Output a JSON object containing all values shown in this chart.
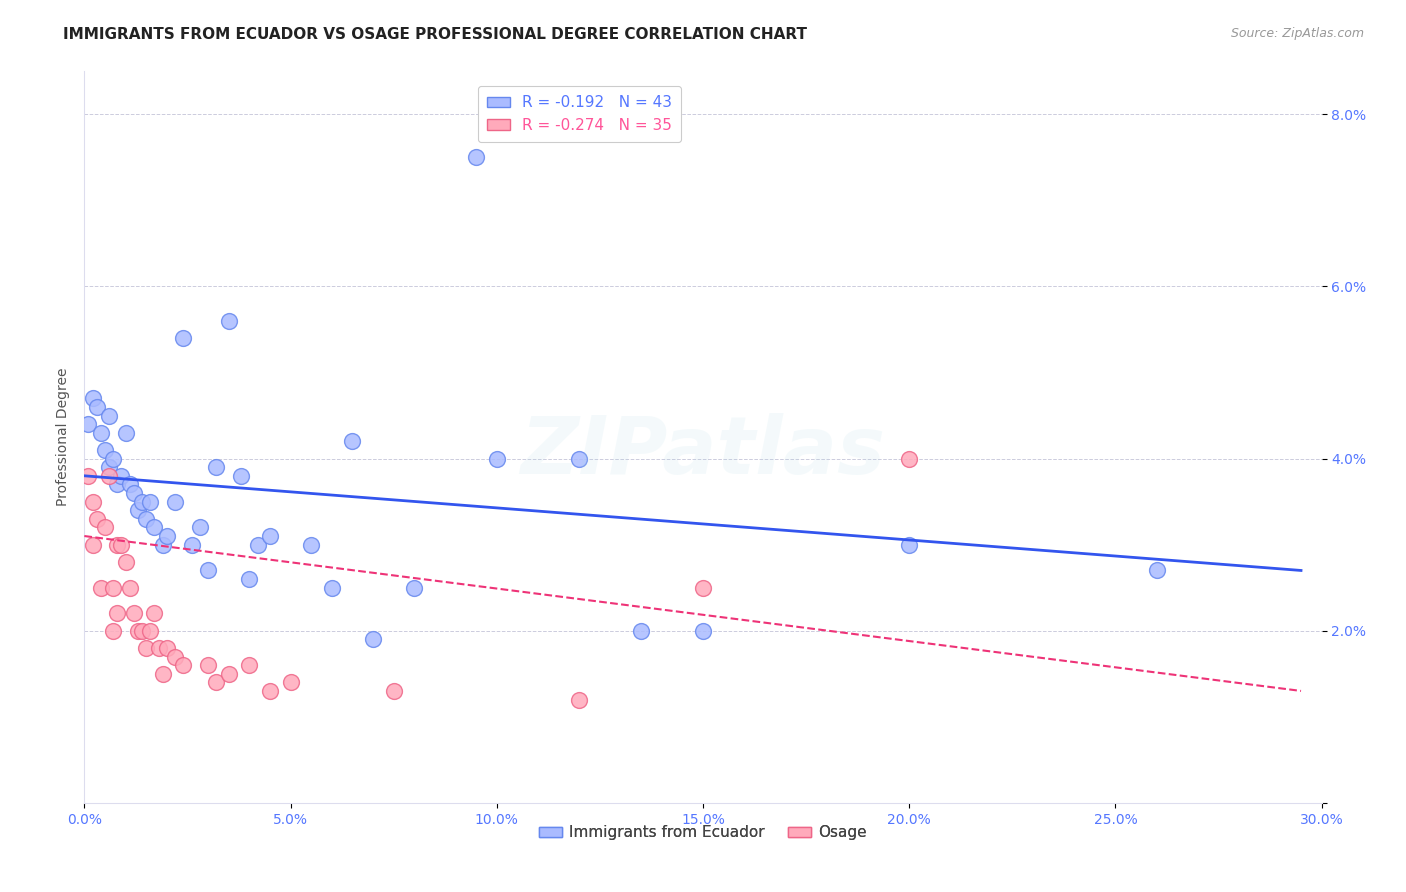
{
  "title": "IMMIGRANTS FROM ECUADOR VS OSAGE PROFESSIONAL DEGREE CORRELATION CHART",
  "source": "Source: ZipAtlas.com",
  "ylabel": "Professional Degree",
  "xlim": [
    0.0,
    0.3
  ],
  "ylim": [
    0.0,
    0.085
  ],
  "xticks": [
    0.0,
    0.05,
    0.1,
    0.15,
    0.2,
    0.25,
    0.3
  ],
  "yticks": [
    0.0,
    0.02,
    0.04,
    0.06,
    0.08
  ],
  "ytick_labels": [
    "",
    "2.0%",
    "4.0%",
    "6.0%",
    "8.0%"
  ],
  "xtick_labels": [
    "0.0%",
    "5.0%",
    "10.0%",
    "15.0%",
    "20.0%",
    "25.0%",
    "30.0%"
  ],
  "legend_entries": [
    {
      "label": "R = -0.192   N = 43",
      "color": "#5577ff"
    },
    {
      "label": "R = -0.274   N = 35",
      "color": "#ff5599"
    }
  ],
  "legend_bottom": [
    {
      "label": "Immigrants from Ecuador",
      "color": "#aabbff"
    },
    {
      "label": "Osage",
      "color": "#ffaabb"
    }
  ],
  "blue_scatter_x": [
    0.001,
    0.002,
    0.003,
    0.004,
    0.005,
    0.006,
    0.006,
    0.007,
    0.008,
    0.009,
    0.01,
    0.011,
    0.012,
    0.013,
    0.014,
    0.015,
    0.016,
    0.017,
    0.019,
    0.02,
    0.022,
    0.024,
    0.026,
    0.028,
    0.03,
    0.032,
    0.035,
    0.038,
    0.04,
    0.042,
    0.045,
    0.055,
    0.06,
    0.065,
    0.07,
    0.08,
    0.095,
    0.1,
    0.12,
    0.135,
    0.15,
    0.2,
    0.26
  ],
  "blue_scatter_y": [
    0.044,
    0.047,
    0.046,
    0.043,
    0.041,
    0.045,
    0.039,
    0.04,
    0.037,
    0.038,
    0.043,
    0.037,
    0.036,
    0.034,
    0.035,
    0.033,
    0.035,
    0.032,
    0.03,
    0.031,
    0.035,
    0.054,
    0.03,
    0.032,
    0.027,
    0.039,
    0.056,
    0.038,
    0.026,
    0.03,
    0.031,
    0.03,
    0.025,
    0.042,
    0.019,
    0.025,
    0.075,
    0.04,
    0.04,
    0.02,
    0.02,
    0.03,
    0.027
  ],
  "pink_scatter_x": [
    0.001,
    0.002,
    0.002,
    0.003,
    0.004,
    0.005,
    0.006,
    0.007,
    0.007,
    0.008,
    0.008,
    0.009,
    0.01,
    0.011,
    0.012,
    0.013,
    0.014,
    0.015,
    0.016,
    0.017,
    0.018,
    0.019,
    0.02,
    0.022,
    0.024,
    0.03,
    0.032,
    0.035,
    0.04,
    0.045,
    0.05,
    0.075,
    0.12,
    0.15,
    0.2
  ],
  "pink_scatter_y": [
    0.038,
    0.035,
    0.03,
    0.033,
    0.025,
    0.032,
    0.038,
    0.02,
    0.025,
    0.03,
    0.022,
    0.03,
    0.028,
    0.025,
    0.022,
    0.02,
    0.02,
    0.018,
    0.02,
    0.022,
    0.018,
    0.015,
    0.018,
    0.017,
    0.016,
    0.016,
    0.014,
    0.015,
    0.016,
    0.013,
    0.014,
    0.013,
    0.012,
    0.025,
    0.04
  ],
  "blue_line_x": [
    0.0,
    0.295
  ],
  "blue_line_y": [
    0.038,
    0.027
  ],
  "pink_line_x": [
    0.0,
    0.295
  ],
  "pink_line_y": [
    0.031,
    0.013
  ],
  "blue_color": "#3355ee",
  "pink_color": "#ee3377",
  "blue_scatter_facecolor": "#aabbff",
  "blue_scatter_edgecolor": "#6688ee",
  "pink_scatter_facecolor": "#ffaabb",
  "pink_scatter_edgecolor": "#ee6688",
  "axis_tick_color": "#5577ff",
  "grid_color": "#ccccdd",
  "background_color": "#ffffff",
  "title_fontsize": 11,
  "source_fontsize": 9,
  "watermark_text": "ZIPatlas",
  "watermark_color": "lightblue",
  "watermark_alpha": 0.13
}
